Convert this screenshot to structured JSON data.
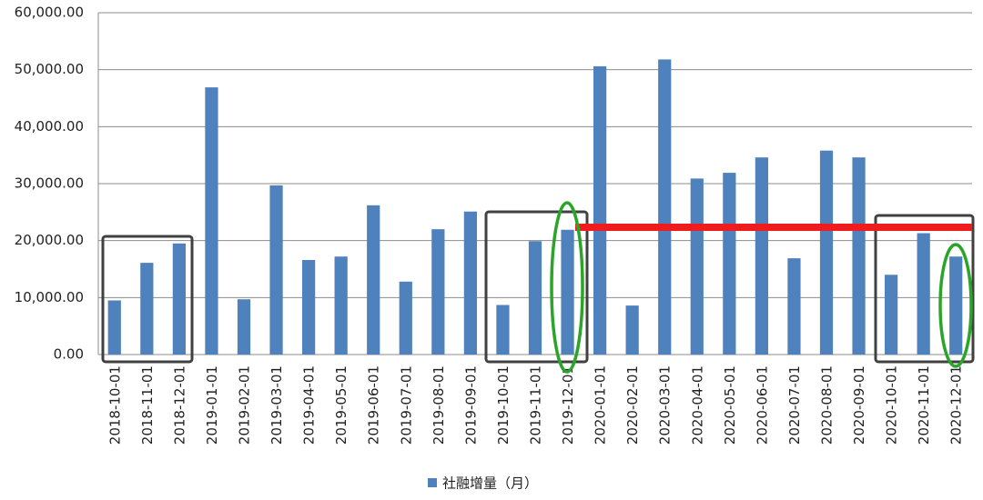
{
  "chart_data": {
    "type": "bar",
    "categories": [
      "2018-10-01",
      "2018-11-01",
      "2018-12-01",
      "2019-01-01",
      "2019-02-01",
      "2019-03-01",
      "2019-04-01",
      "2019-05-01",
      "2019-06-01",
      "2019-07-01",
      "2019-08-01",
      "2019-09-01",
      "2019-10-01",
      "2019-11-01",
      "2019-12-01",
      "2020-01-01",
      "2020-02-01",
      "2020-03-01",
      "2020-04-01",
      "2020-05-01",
      "2020-06-01",
      "2020-07-01",
      "2020-08-01",
      "2020-09-01",
      "2020-10-01",
      "2020-11-01",
      "2020-12-01"
    ],
    "series": [
      {
        "name": "社融增量（月）",
        "color": "#4f81bd",
        "values": [
          9500,
          16100,
          19500,
          46900,
          9700,
          29700,
          16600,
          17200,
          26200,
          12800,
          22000,
          25100,
          8700,
          19900,
          21900,
          50600,
          8600,
          51800,
          30900,
          31900,
          34600,
          16900,
          35800,
          34600,
          14000,
          21300,
          17200
        ]
      }
    ],
    "ylim": [
      0,
      60000
    ],
    "yticks": [
      {
        "value": 0,
        "label": "0.00"
      },
      {
        "value": 10000,
        "label": "10,000.00"
      },
      {
        "value": 20000,
        "label": "20,000.00"
      },
      {
        "value": 30000,
        "label": "30,000.00"
      },
      {
        "value": 40000,
        "label": "40,000.00"
      },
      {
        "value": 50000,
        "label": "50,000.00"
      },
      {
        "value": 60000,
        "label": "60,000.00"
      }
    ],
    "grid": true
  }
}
